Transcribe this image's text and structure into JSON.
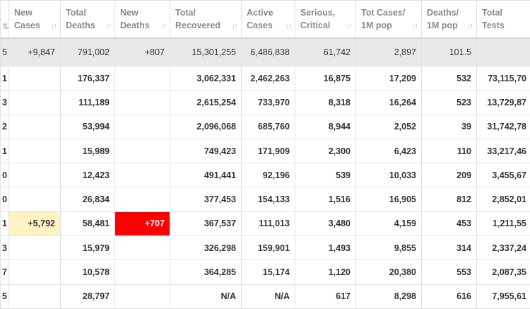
{
  "headers": [
    {
      "line1": "",
      "line2": ""
    },
    {
      "line1": "New",
      "line2": "Cases"
    },
    {
      "line1": "Total",
      "line2": "Deaths"
    },
    {
      "line1": "New",
      "line2": "Deaths"
    },
    {
      "line1": "Total",
      "line2": "Recovered"
    },
    {
      "line1": "Active",
      "line2": "Cases"
    },
    {
      "line1": "Serious,",
      "line2": "Critical"
    },
    {
      "line1": "Tot Cases/",
      "line2": "1M pop"
    },
    {
      "line1": "Deaths/",
      "line2": "1M pop"
    },
    {
      "line1": "Total",
      "line2": "Tests"
    }
  ],
  "total_row": [
    "5",
    "+9,847",
    "791,002",
    "+807",
    "15,301,255",
    "6,486,838",
    "61,742",
    "2,897",
    "101.5",
    ""
  ],
  "rows": [
    [
      "1",
      "",
      "176,337",
      "",
      "3,062,331",
      "2,462,263",
      "16,875",
      "17,209",
      "532",
      "73,115,70"
    ],
    [
      "3",
      "",
      "111,189",
      "",
      "2,615,254",
      "733,970",
      "8,318",
      "16,264",
      "523",
      "13,729,87"
    ],
    [
      "2",
      "",
      "53,994",
      "",
      "2,096,068",
      "685,760",
      "8,944",
      "2,052",
      "39",
      "31,742,78"
    ],
    [
      "1",
      "",
      "15,989",
      "",
      "749,423",
      "171,909",
      "2,300",
      "6,423",
      "110",
      "33,217,46"
    ],
    [
      "0",
      "",
      "12,423",
      "",
      "491,441",
      "92,196",
      "539",
      "10,033",
      "209",
      "3,455,67"
    ],
    [
      "0",
      "",
      "26,834",
      "",
      "377,453",
      "154,133",
      "1,516",
      "16,905",
      "812",
      "2,852,01"
    ],
    [
      "1",
      "+5,792",
      "58,481",
      "+707",
      "367,537",
      "111,013",
      "3,480",
      "4,159",
      "453",
      "1,211,55"
    ],
    [
      "3",
      "",
      "15,979",
      "",
      "326,298",
      "159,901",
      "1,493",
      "9,855",
      "314",
      "2,337,24"
    ],
    [
      "7",
      "",
      "10,578",
      "",
      "364,285",
      "15,174",
      "1,120",
      "20,380",
      "553",
      "2,087,35"
    ],
    [
      "5",
      "",
      "28,797",
      "",
      "N/A",
      "N/A",
      "617",
      "8,298",
      "616",
      "7,955,61"
    ]
  ],
  "sort_icon": "sort-arrows-icon",
  "colors": {
    "new_cases_highlight": "#fff3c1",
    "new_deaths_highlight": "#ff0000",
    "total_row_bg": "#e8e8e8"
  }
}
